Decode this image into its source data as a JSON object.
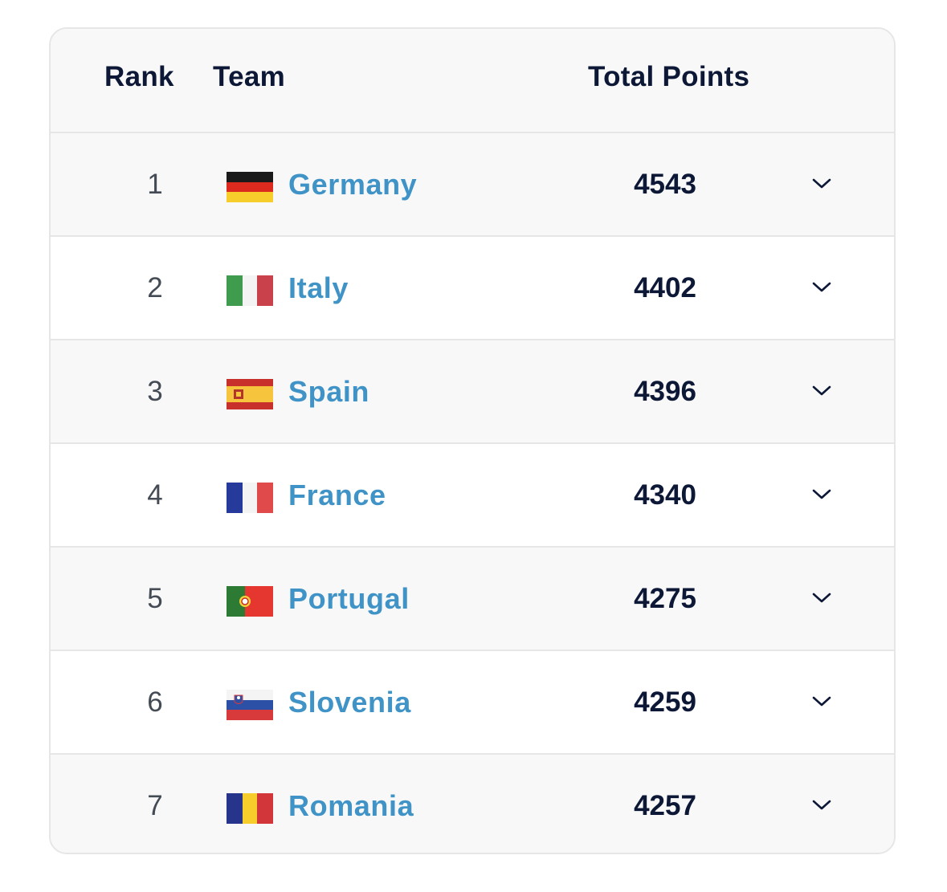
{
  "header": {
    "rank": "Rank",
    "team": "Team",
    "points": "Total Points"
  },
  "rows": [
    {
      "rank": "1",
      "team": "Germany",
      "points": "4543",
      "flag": "germany-flag-icon"
    },
    {
      "rank": "2",
      "team": "Italy",
      "points": "4402",
      "flag": "italy-flag-icon"
    },
    {
      "rank": "3",
      "team": "Spain",
      "points": "4396",
      "flag": "spain-flag-icon"
    },
    {
      "rank": "4",
      "team": "France",
      "points": "4340",
      "flag": "france-flag-icon"
    },
    {
      "rank": "5",
      "team": "Portugal",
      "points": "4275",
      "flag": "portugal-flag-icon"
    },
    {
      "rank": "6",
      "team": "Slovenia",
      "points": "4259",
      "flag": "slovenia-flag-icon"
    },
    {
      "rank": "7",
      "team": "Romania",
      "points": "4257",
      "flag": "romania-flag-icon"
    }
  ],
  "colors": {
    "team_link": "#4093c6",
    "heading": "#0c1836",
    "rank_text": "#444b55",
    "row_alt_bg": "#f8f8f8",
    "border": "#e6e6e6"
  }
}
